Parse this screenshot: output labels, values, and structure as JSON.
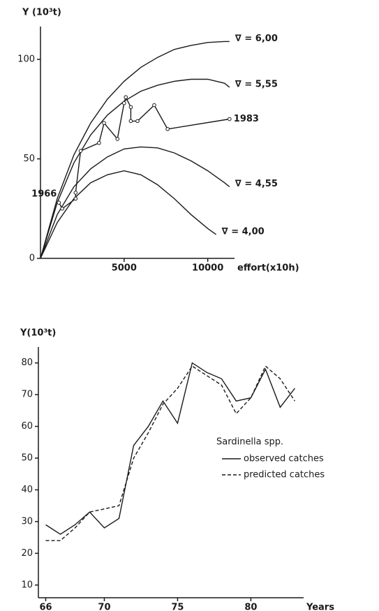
{
  "chart_data": [
    {
      "type": "line",
      "ylabel": "Y (10³t)",
      "xlabel": "effort(x10h)",
      "xlim": [
        0,
        11600
      ],
      "ylim": [
        0,
        116.5
      ],
      "xticks": [
        5000,
        10000
      ],
      "yticks": [
        0,
        50,
        100
      ],
      "annotations": [
        "1966",
        "1983"
      ],
      "series": [
        {
          "name": "∇ = 6,00",
          "color": "#1a1a1a",
          "x": [
            0,
            1000,
            2000,
            3000,
            4000,
            5000,
            6000,
            7000,
            8000,
            9000,
            10000,
            11000,
            11300
          ],
          "values": [
            0,
            30,
            52,
            68,
            80,
            89,
            96,
            101,
            105,
            107,
            108.5,
            109,
            109
          ]
        },
        {
          "name": "∇ = 5,55",
          "color": "#1a1a1a",
          "x": [
            0,
            1000,
            2000,
            3000,
            4000,
            5000,
            6000,
            7000,
            8000,
            9000,
            10000,
            11000,
            11300
          ],
          "values": [
            0,
            28,
            48,
            62,
            72,
            79,
            84,
            87,
            89,
            90,
            90,
            88,
            86
          ]
        },
        {
          "name": "∇ = 4,55",
          "color": "#1a1a1a",
          "x": [
            0,
            1000,
            2000,
            3000,
            4000,
            5000,
            6000,
            7000,
            8000,
            9000,
            10000,
            11000,
            11300
          ],
          "values": [
            0,
            22,
            36,
            45,
            51,
            55,
            56,
            55.5,
            53,
            49,
            44,
            38,
            36
          ]
        },
        {
          "name": "∇ = 4,00",
          "color": "#1a1a1a",
          "x": [
            0,
            1000,
            2000,
            3000,
            4000,
            5000,
            6000,
            7000,
            8000,
            9000,
            10000,
            10500
          ],
          "values": [
            0,
            18,
            30,
            38,
            42,
            44,
            42,
            37,
            30,
            22,
            15,
            12
          ]
        },
        {
          "color": "#1a1a1a",
          "marker": "circle",
          "x": [
            1100,
            1300,
            2100,
            2100,
            2400,
            3500,
            3800,
            4600,
            5000,
            5100,
            5400,
            5400,
            5800,
            6800,
            7600,
            11300
          ],
          "values": [
            28,
            25,
            30,
            33,
            54,
            58,
            68,
            60,
            78,
            81,
            76,
            69,
            69,
            77,
            65,
            70
          ]
        }
      ]
    },
    {
      "type": "line",
      "ylabel": "Y(10³t)",
      "xlabel": "Years",
      "xlim": [
        65.5,
        83.6
      ],
      "ylim": [
        6,
        85
      ],
      "xticks": [
        66,
        70,
        75,
        80
      ],
      "yticks": [
        10,
        20,
        30,
        40,
        50,
        60,
        70,
        80
      ],
      "legend_title": "Sardinella spp.",
      "x": [
        66,
        67,
        68,
        69,
        70,
        71,
        72,
        73,
        74,
        75,
        76,
        77,
        78,
        79,
        80,
        81,
        82,
        83
      ],
      "series": [
        {
          "name": "observed catches",
          "color": "#1a1a1a",
          "values": [
            29,
            26,
            29,
            33,
            28,
            31,
            54,
            60,
            68,
            61,
            80,
            77,
            75,
            68,
            69,
            78,
            66,
            72
          ]
        },
        {
          "name": "predicted catches",
          "color": "#1a1a1a",
          "dash": "5,3",
          "values": [
            24,
            24,
            28,
            33,
            34,
            35,
            50,
            58,
            67,
            72,
            79,
            76,
            73,
            64,
            69,
            79,
            75,
            68
          ]
        }
      ]
    }
  ]
}
